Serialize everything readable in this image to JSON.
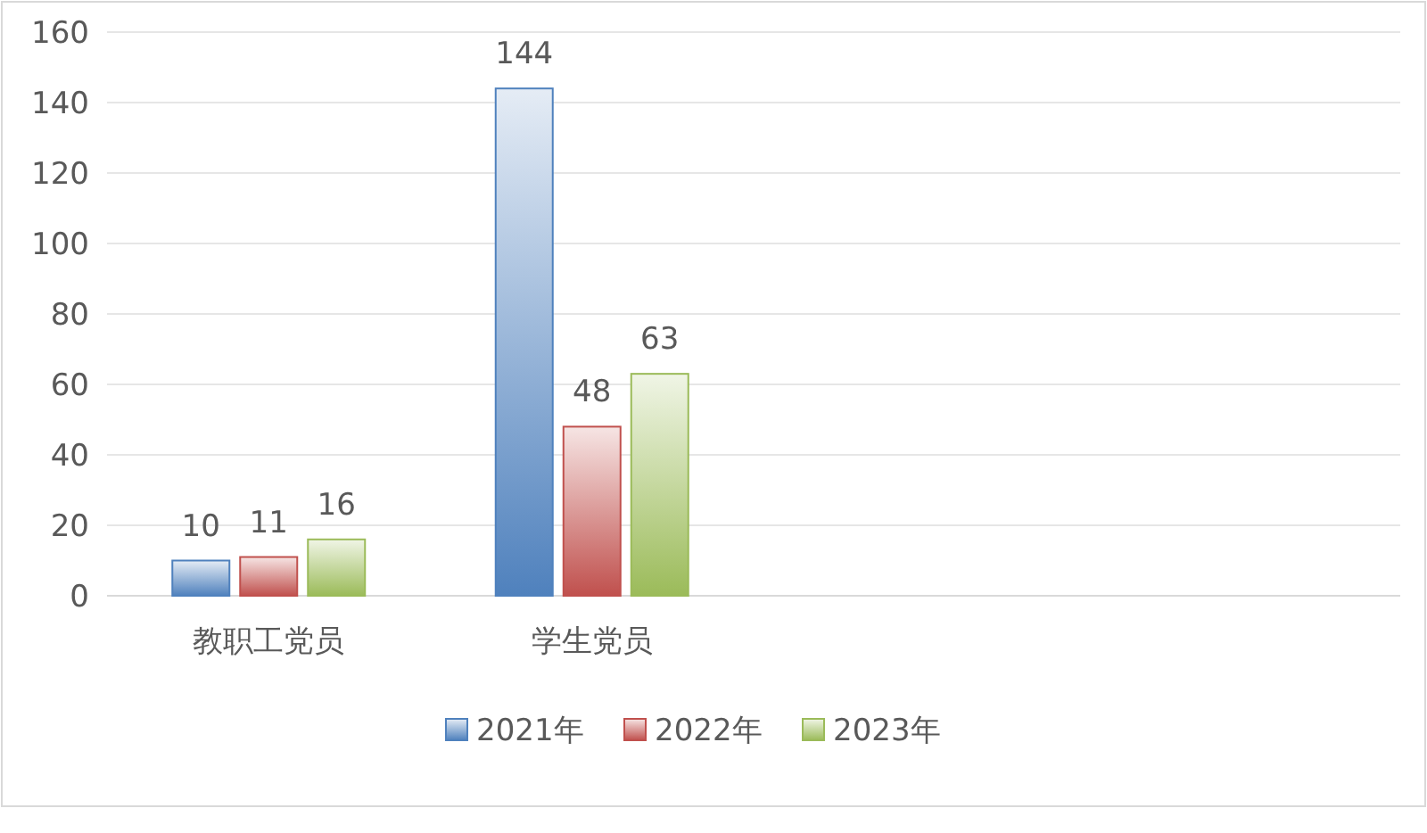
{
  "chart_data": {
    "type": "bar",
    "categories": [
      "教职工党员",
      "学生党员",
      null,
      null
    ],
    "series": [
      {
        "name": "2021年",
        "color": "#4f81bd",
        "values": [
          10,
          144,
          null,
          null
        ]
      },
      {
        "name": "2022年",
        "color": "#c0504d",
        "values": [
          11,
          48,
          null,
          null
        ]
      },
      {
        "name": "2023年",
        "color": "#9bbb59",
        "values": [
          16,
          63,
          null,
          null
        ]
      }
    ],
    "ylim": [
      0,
      160
    ],
    "yticks": [
      0,
      20,
      40,
      60,
      80,
      100,
      120,
      140,
      160
    ],
    "grid": "y",
    "legend": "bottom",
    "data_labels": true
  }
}
